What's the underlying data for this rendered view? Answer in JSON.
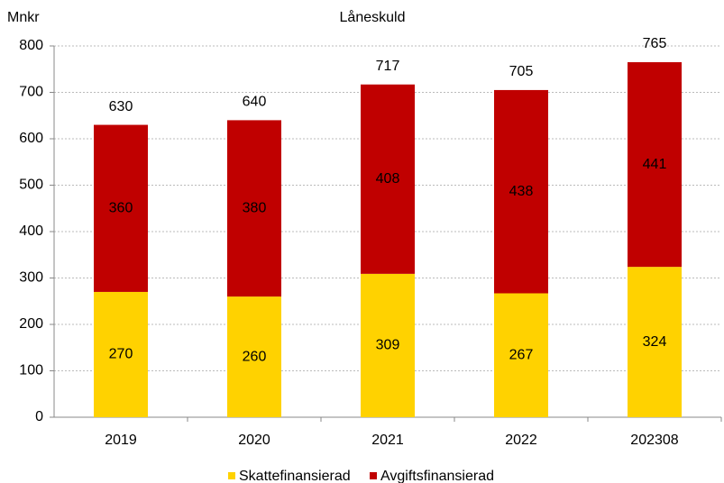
{
  "chart_data": {
    "type": "stacked_bar",
    "title": "Låneskuld",
    "y_label": "Mnkr",
    "categories": [
      "2019",
      "2020",
      "2021",
      "2022",
      "202308"
    ],
    "series": [
      {
        "name": "Skattefinansierad",
        "color": "#ffd200",
        "values": [
          270,
          260,
          309,
          267,
          324
        ]
      },
      {
        "name": "Avgiftsfinansierad",
        "color": "#c00000",
        "values": [
          360,
          380,
          408,
          438,
          441
        ]
      }
    ],
    "totals": [
      630,
      640,
      717,
      705,
      765
    ],
    "ylim": [
      0,
      800
    ],
    "yticks": [
      0,
      100,
      200,
      300,
      400,
      500,
      600,
      700,
      800
    ],
    "grid": true,
    "legend": "bottom"
  }
}
